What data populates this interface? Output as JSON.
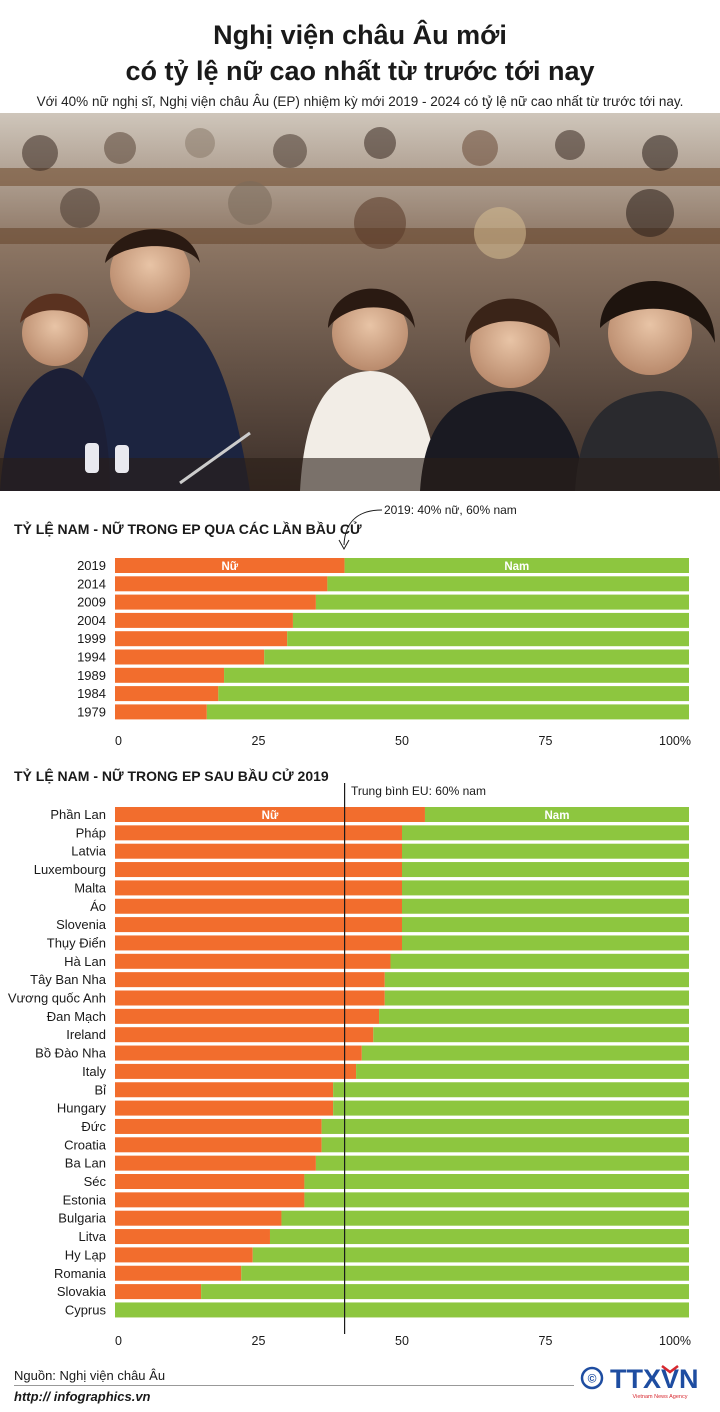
{
  "header": {
    "title_line1": "Nghị viện châu Âu mới",
    "title_line2": "có tỷ lệ nữ cao nhất từ trước tới nay",
    "subtitle": "Với 40% nữ nghị sĩ, Nghị viện châu Âu (EP) nhiệm kỳ mới 2019 - 2024 có tỷ lệ nữ cao nhất từ trước tới nay."
  },
  "colors": {
    "female": "#f26d2d",
    "male": "#8dc63f",
    "text": "#1a1a1a"
  },
  "chart_data": [
    {
      "type": "bar",
      "orientation": "horizontal-stacked-100",
      "title": "TỶ LỆ NAM - NỮ TRONG EP QUA CÁC LẦN BẦU CỬ",
      "annotation": "2019: 40% nữ, 60% nam",
      "legend_labels": {
        "female": "Nữ",
        "male": "Nam"
      },
      "categories": [
        "2019",
        "2014",
        "2009",
        "2004",
        "1999",
        "1994",
        "1989",
        "1984",
        "1979"
      ],
      "series": [
        {
          "name": "Nữ",
          "values": [
            40,
            37,
            35,
            31,
            30,
            26,
            19,
            18,
            16
          ]
        },
        {
          "name": "Nam",
          "values": [
            60,
            63,
            65,
            69,
            70,
            74,
            81,
            82,
            84
          ]
        }
      ],
      "x_ticks": [
        "0",
        "25",
        "50",
        "75",
        "100%"
      ],
      "xlim": [
        0,
        100
      ]
    },
    {
      "type": "bar",
      "orientation": "horizontal-stacked-100",
      "title": "TỶ LỆ NAM - NỮ TRONG EP SAU BẦU CỬ 2019",
      "annotation": "Trung bình EU: 60% nam",
      "reference_line": 40,
      "legend_labels": {
        "female": "Nữ",
        "male": "Nam"
      },
      "categories": [
        "Phần Lan",
        "Pháp",
        "Latvia",
        "Luxembourg",
        "Malta",
        "Áo",
        "Slovenia",
        "Thụy Điển",
        "Hà Lan",
        "Tây Ban Nha",
        "Vương quốc Anh",
        "Đan Mạch",
        "Ireland",
        "Bồ Đào Nha",
        "Italy",
        "Bỉ",
        "Hungary",
        "Đức",
        "Croatia",
        "Ba Lan",
        "Séc",
        "Estonia",
        "Bulgaria",
        "Litva",
        "Hy Lạp",
        "Romania",
        "Slovakia",
        "Cyprus"
      ],
      "series": [
        {
          "name": "Nữ",
          "values": [
            54,
            50,
            50,
            50,
            50,
            50,
            50,
            50,
            48,
            47,
            47,
            46,
            45,
            43,
            42,
            38,
            38,
            36,
            36,
            35,
            33,
            33,
            29,
            27,
            24,
            22,
            15,
            0
          ]
        },
        {
          "name": "Nam",
          "values": [
            46,
            50,
            50,
            50,
            50,
            50,
            50,
            50,
            52,
            53,
            53,
            54,
            55,
            57,
            58,
            62,
            62,
            64,
            64,
            65,
            67,
            67,
            71,
            73,
            76,
            78,
            85,
            100
          ]
        }
      ],
      "x_ticks": [
        "0",
        "25",
        "50",
        "75",
        "100%"
      ],
      "xlim": [
        0,
        100
      ]
    }
  ],
  "footer": {
    "source": "Nguồn: Nghị viện châu Âu",
    "website": "http:// infographics.vn",
    "logo_text": "TTXVN",
    "logo_subtext": "Vietnam News Agency",
    "copyright_symbol": "©"
  }
}
